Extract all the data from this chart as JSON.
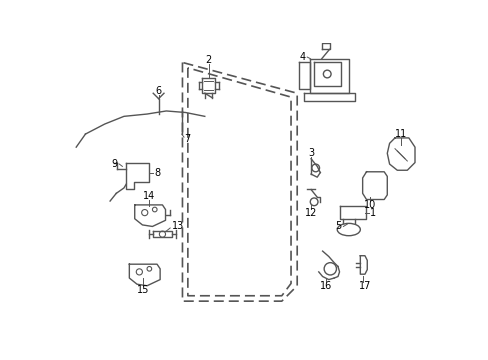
{
  "bg_color": "#ffffff",
  "fig_width": 4.89,
  "fig_height": 3.6,
  "dpi": 100,
  "text_color": "#000000",
  "line_color": "#555555",
  "part_color": "#555555",
  "label_fs": 7.0
}
